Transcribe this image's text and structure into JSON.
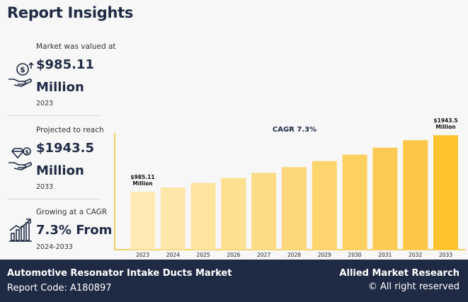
{
  "header": {
    "title": "Report Insights"
  },
  "stats": [
    {
      "label": "Market was valued at",
      "value_line1": "$985.11",
      "value_line2": "Million",
      "sub": "2023",
      "icon": "money-hand-icon"
    },
    {
      "label": "Projected to reach",
      "value_line1": "$1943.5",
      "value_line2": "Million",
      "sub": "2033",
      "icon": "diamond-hand-icon"
    },
    {
      "label": "Growing at a CAGR",
      "value_line1": "7.3% From",
      "sub": "2024-2033",
      "icon": "growth-chart-icon"
    }
  ],
  "chart_data": {
    "type": "bar",
    "title": "CAGR 7.3%",
    "categories": [
      "2023",
      "2024",
      "2025",
      "2026",
      "2027",
      "2028",
      "2029",
      "2030",
      "2031",
      "2032",
      "2033"
    ],
    "values": [
      985.11,
      1057,
      1134,
      1217,
      1306,
      1402,
      1504,
      1614,
      1732,
      1858,
      1943.5
    ],
    "annotations": [
      {
        "category": "2023",
        "line1": "$985.11",
        "line2": "Million"
      },
      {
        "category": "2033",
        "line1": "$1943.5",
        "line2": "Million"
      }
    ],
    "colors": [
      "#fde9b3",
      "#fde6a8",
      "#fde39d",
      "#fde092",
      "#fddc86",
      "#fdd87a",
      "#fdd46e",
      "#fdd062",
      "#fdcb55",
      "#fdc647",
      "#fdc22c"
    ],
    "ylim": [
      0,
      2150
    ]
  },
  "footer": {
    "market_name": "Automotive Resonator Intake Ducts Market",
    "report_code": "Report Code: A180897",
    "brand": "Allied Market Research",
    "rights": "© All right reserved"
  }
}
